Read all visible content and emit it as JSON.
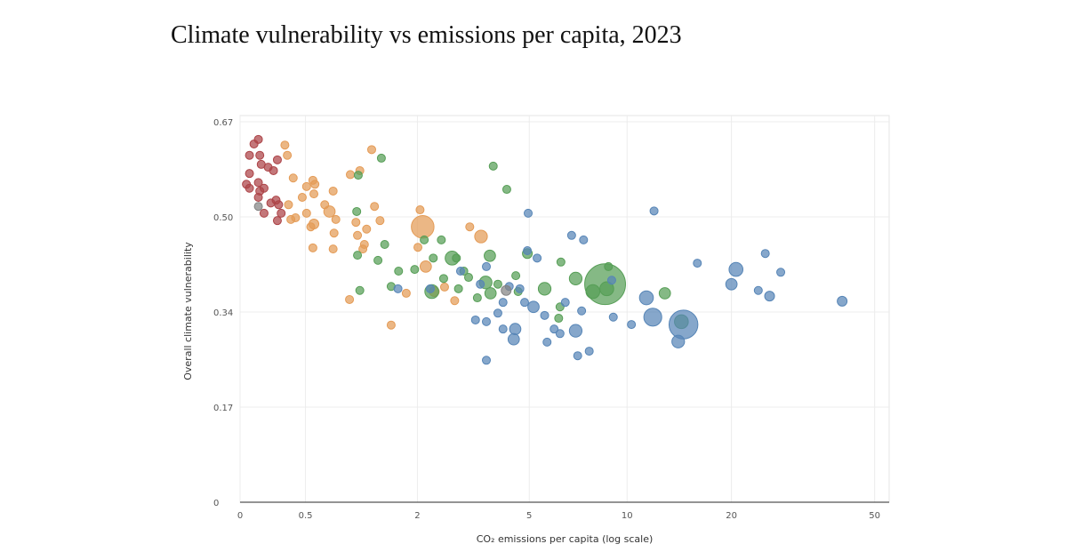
{
  "chart_data": {
    "type": "scatter",
    "title": "Climate vulnerability vs emissions per capita, 2023",
    "x_label": "CO₂ emissions per capita (log scale)",
    "y_label": "Overall climate vulnerability",
    "xscale": "log1p",
    "xlim": [
      0,
      54.8
    ],
    "ylim": [
      0,
      0.681
    ],
    "xticks": [
      0,
      0.5,
      2,
      5,
      10,
      20,
      50
    ],
    "yticks": [
      0,
      {
        "value": 0.1675,
        "label": "0.17"
      },
      {
        "value": 0.335,
        "label": "0.34"
      },
      {
        "value": 0.5025,
        "label": "0.50"
      },
      0.67
    ],
    "grid": true,
    "series": [
      {
        "color": "#b5474b",
        "x": [
          0.12,
          0.09,
          0.06,
          0.13,
          0.14,
          0.19,
          0.06,
          0.23,
          0.26,
          0.04,
          0.06,
          0.12,
          0.13,
          0.16,
          0.25,
          0.27,
          0.12,
          0.16,
          0.26,
          0.29,
          0.21
        ],
        "values": [
          0.639,
          0.631,
          0.611,
          0.611,
          0.595,
          0.59,
          0.579,
          0.584,
          0.603,
          0.56,
          0.553,
          0.563,
          0.548,
          0.553,
          0.532,
          0.524,
          0.537,
          0.509,
          0.496,
          0.509,
          0.527
        ],
        "sizes": [
          1,
          1,
          1,
          1,
          1,
          1,
          1,
          1,
          1,
          1,
          1,
          1,
          1,
          1,
          1,
          1,
          1,
          1,
          1,
          1,
          1
        ]
      },
      {
        "color": "#f0a35a",
        "x": [
          0.32,
          0.34,
          0.39,
          0.51,
          0.57,
          0.59,
          0.58,
          0.47,
          0.35,
          0.41,
          0.37,
          0.51,
          0.55,
          0.58,
          0.69,
          0.74,
          0.78,
          0.81,
          0.79,
          0.78,
          0.57,
          0.98,
          1.1,
          1.26,
          1.05,
          1.07,
          1.16,
          1.19,
          1.3,
          1.38,
          1.14,
          0.97,
          1.55,
          1.8,
          2.01,
          2.05,
          2.16,
          2.33,
          2.55,
          2.78,
          3.15,
          3.45,
          2.1
        ],
        "values": [
          0.629,
          0.611,
          0.571,
          0.556,
          0.567,
          0.56,
          0.543,
          0.537,
          0.524,
          0.501,
          0.498,
          0.509,
          0.485,
          0.49,
          0.524,
          0.512,
          0.548,
          0.498,
          0.474,
          0.446,
          0.448,
          0.577,
          0.584,
          0.621,
          0.493,
          0.47,
          0.454,
          0.481,
          0.521,
          0.496,
          0.446,
          0.357,
          0.312,
          0.368,
          0.449,
          0.515,
          0.415,
          0.371,
          0.379,
          0.355,
          0.485,
          0.468,
          0.485
        ],
        "sizes": [
          1,
          1,
          1,
          1,
          1,
          1,
          1,
          1,
          1,
          1,
          1,
          1,
          1,
          1.5,
          1,
          2,
          1,
          1,
          1,
          1,
          1,
          1,
          1,
          1,
          1,
          1,
          1,
          1,
          1,
          1,
          1,
          1,
          1,
          1,
          1,
          1,
          2,
          1.5,
          1,
          1,
          1,
          2.5,
          8
        ]
      },
      {
        "color": "#5aa65a",
        "x": [
          1.4,
          1.08,
          1.06,
          1.07,
          1.1,
          1.45,
          1.35,
          1.55,
          1.67,
          1.95,
          2.13,
          2.28,
          2.31,
          2.48,
          2.53,
          2.72,
          2.82,
          3.0,
          2.87,
          3.12,
          3.7,
          3.58,
          3.72,
          3.94,
          3.8,
          4.22,
          4.6,
          4.93,
          5.6,
          6.26,
          6.3,
          7.0,
          6.2,
          8.6,
          8.8,
          8.7,
          7.9,
          12.9,
          14.4,
          4.52,
          3.35
        ],
        "values": [
          0.606,
          0.576,
          0.512,
          0.435,
          0.373,
          0.454,
          0.426,
          0.38,
          0.407,
          0.41,
          0.462,
          0.371,
          0.43,
          0.462,
          0.394,
          0.43,
          0.43,
          0.407,
          0.376,
          0.396,
          0.434,
          0.387,
          0.368,
          0.384,
          0.592,
          0.551,
          0.371,
          0.438,
          0.376,
          0.344,
          0.423,
          0.394,
          0.324,
          0.384,
          0.415,
          0.376,
          0.371,
          0.368,
          0.318,
          0.399,
          0.36
        ],
        "sizes": [
          1,
          1,
          1,
          1,
          1,
          1,
          1,
          1,
          1,
          1,
          1,
          3,
          1,
          1,
          1,
          3,
          1,
          1,
          1,
          1,
          2,
          2.5,
          2,
          1,
          1,
          1,
          1,
          1.5,
          2.5,
          1,
          1,
          2.5,
          1,
          26,
          1,
          3,
          3,
          2,
          3,
          1,
          1
        ]
      },
      {
        "color": "#5b8cc0",
        "x": [
          4.96,
          12.0,
          6.8,
          7.4,
          4.93,
          5.3,
          3.6,
          2.92,
          2.25,
          1.66,
          3.3,
          3.6,
          3.6,
          4.1,
          4.5,
          4.45,
          3.94,
          4.1,
          4.83,
          5.16,
          5.6,
          6.0,
          6.26,
          5.7,
          6.5,
          7.0,
          7.1,
          7.7,
          7.3,
          9.1,
          10.3,
          11.4,
          11.9,
          14.6,
          14.1,
          16.0,
          20.6,
          20.0,
          23.8,
          25.6,
          24.9,
          27.5,
          40.7,
          9.0,
          4.3,
          4.66,
          3.43
        ],
        "values": [
          0.509,
          0.513,
          0.47,
          0.462,
          0.443,
          0.43,
          0.415,
          0.407,
          0.376,
          0.376,
          0.321,
          0.318,
          0.25,
          0.305,
          0.305,
          0.287,
          0.333,
          0.352,
          0.352,
          0.344,
          0.329,
          0.305,
          0.297,
          0.282,
          0.352,
          0.302,
          0.258,
          0.266,
          0.337,
          0.326,
          0.313,
          0.36,
          0.326,
          0.313,
          0.283,
          0.421,
          0.41,
          0.384,
          0.373,
          0.363,
          0.438,
          0.405,
          0.354,
          0.391,
          0.38,
          0.376,
          0.384
        ],
        "sizes": [
          1,
          1,
          1,
          1,
          1,
          1,
          1,
          1,
          1,
          1,
          1,
          1,
          1,
          1,
          2,
          2,
          1,
          1,
          1,
          2,
          1,
          1,
          1,
          1,
          1,
          2.5,
          1,
          1,
          1,
          1,
          1,
          3,
          5,
          13,
          2.5,
          1,
          3,
          2,
          1,
          1.5,
          1,
          1,
          1.5,
          1,
          1,
          1,
          1
        ]
      },
      {
        "color": "#8a8a8a",
        "x": [
          0.12,
          4.2
        ],
        "values": [
          0.521,
          0.373
        ],
        "sizes": [
          1,
          1.5
        ]
      }
    ]
  }
}
